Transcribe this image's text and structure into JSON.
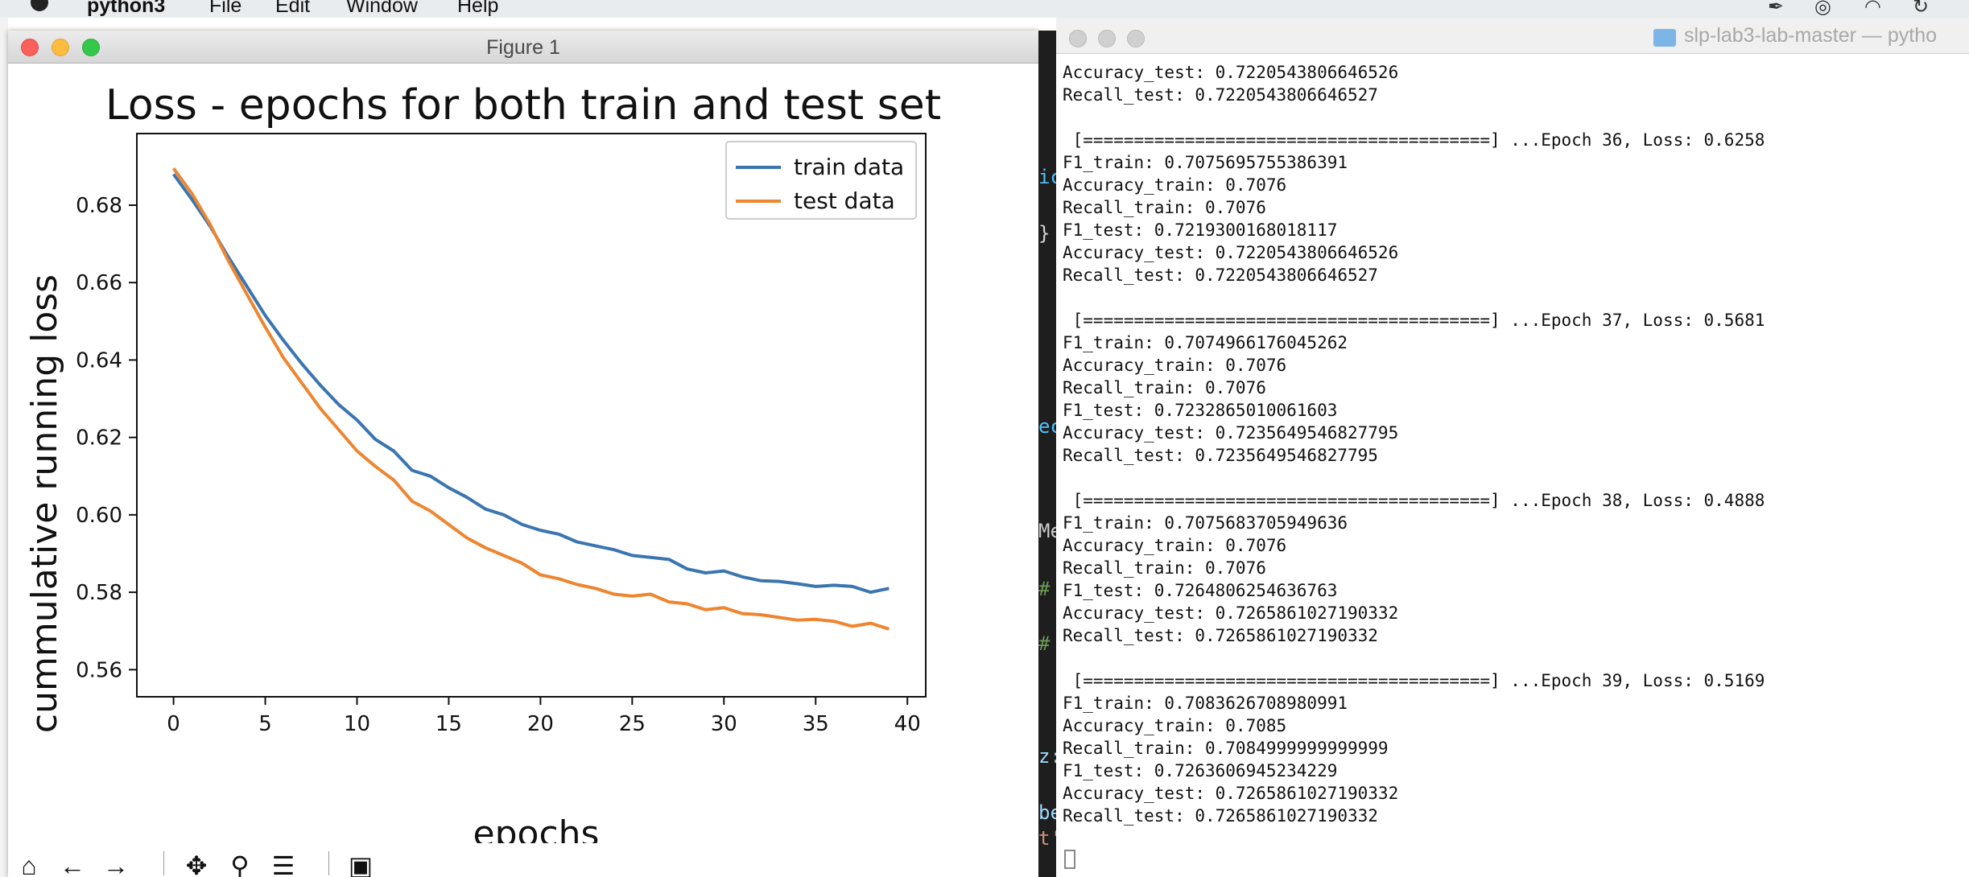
{
  "menubar": {
    "items": [
      "python3",
      "File",
      "Edit",
      "Window",
      "Help"
    ]
  },
  "figure_window": {
    "title": "Figure 1",
    "toolbar": {
      "home": "⌂",
      "back": "←",
      "forward": "→",
      "pan": "✥",
      "zoom": "⚲",
      "configure": "☰",
      "save": "▣"
    }
  },
  "chart_data": {
    "type": "line",
    "title": "Loss - epochs for both train and test set",
    "xlabel": "epochs",
    "ylabel": "cummulative running loss",
    "xlim": [
      -2,
      41
    ],
    "ylim": [
      0.553,
      0.6985
    ],
    "xticks": [
      0,
      5,
      10,
      15,
      20,
      25,
      30,
      35,
      40
    ],
    "xtick_labels": [
      "0",
      "5",
      "10",
      "15",
      "20",
      "25",
      "30",
      "35",
      "40"
    ],
    "yticks": [
      0.56,
      0.58,
      0.6,
      0.62,
      0.64,
      0.66,
      0.68
    ],
    "ytick_labels": [
      "0.56",
      "0.58",
      "0.60",
      "0.62",
      "0.64",
      "0.66",
      "0.68"
    ],
    "legend_position": "top-right",
    "grid": false,
    "x": [
      0,
      1,
      2,
      3,
      4,
      5,
      6,
      7,
      8,
      9,
      10,
      11,
      12,
      13,
      14,
      15,
      16,
      17,
      18,
      19,
      20,
      21,
      22,
      23,
      24,
      25,
      26,
      27,
      28,
      29,
      30,
      31,
      32,
      33,
      34,
      35,
      36,
      37,
      38,
      39
    ],
    "series": [
      {
        "name": "train data",
        "color": "#3a75b0",
        "values": [
          0.688,
          0.6815,
          0.6745,
          0.6665,
          0.659,
          0.6515,
          0.645,
          0.639,
          0.6335,
          0.6285,
          0.6245,
          0.6195,
          0.6165,
          0.6115,
          0.61,
          0.607,
          0.6045,
          0.6015,
          0.6,
          0.5975,
          0.596,
          0.595,
          0.593,
          0.592,
          0.591,
          0.5895,
          0.589,
          0.5885,
          0.586,
          0.585,
          0.5855,
          0.584,
          0.583,
          0.5828,
          0.5822,
          0.5815,
          0.5818,
          0.5815,
          0.58,
          0.581
        ]
      },
      {
        "name": "test data",
        "color": "#ee8530",
        "values": [
          0.6895,
          0.683,
          0.675,
          0.6655,
          0.657,
          0.6485,
          0.6405,
          0.634,
          0.6275,
          0.622,
          0.6165,
          0.6125,
          0.609,
          0.6035,
          0.601,
          0.5975,
          0.594,
          0.5915,
          0.5895,
          0.5875,
          0.5845,
          0.5835,
          0.582,
          0.581,
          0.5795,
          0.579,
          0.5795,
          0.5775,
          0.577,
          0.5755,
          0.576,
          0.5745,
          0.5742,
          0.5735,
          0.5728,
          0.573,
          0.5725,
          0.5712,
          0.572,
          0.5705
        ]
      }
    ]
  },
  "terminal": {
    "title": "slp-lab3-lab-master — pytho",
    "lines": [
      "Accuracy_test: 0.7220543806646526",
      "Recall_test: 0.7220543806646527",
      "",
      " [========================================] ...Epoch 36, Loss: 0.6258",
      "F1_train: 0.7075695755386391",
      "Accuracy_train: 0.7076",
      "Recall_train: 0.7076",
      "F1_test: 0.7219300168018117",
      "Accuracy_test: 0.7220543806646526",
      "Recall_test: 0.7220543806646527",
      "",
      " [========================================] ...Epoch 37, Loss: 0.5681",
      "F1_train: 0.7074966176045262",
      "Accuracy_train: 0.7076",
      "Recall_train: 0.7076",
      "F1_test: 0.7232865010061603",
      "Accuracy_test: 0.7235649546827795",
      "Recall_test: 0.7235649546827795",
      "",
      " [========================================] ...Epoch 38, Loss: 0.4888",
      "F1_train: 0.7075683705949636",
      "Accuracy_train: 0.7076",
      "Recall_train: 0.7076",
      "F1_test: 0.7264806254636763",
      "Accuracy_test: 0.7265861027190332",
      "Recall_test: 0.7265861027190332",
      "",
      " [========================================] ...Epoch 39, Loss: 0.5169",
      "F1_train: 0.7083626708980991",
      "Accuracy_train: 0.7085",
      "Recall_train: 0.7084999999999999",
      "F1_test: 0.7263606945234229",
      "Accuracy_test: 0.7265861027190332",
      "Recall_test: 0.7265861027190332"
    ]
  },
  "editor_fragments": [
    "ic",
    "}",
    "ec",
    "Me",
    "#",
    "#",
    "z:",
    "be",
    "t'"
  ]
}
